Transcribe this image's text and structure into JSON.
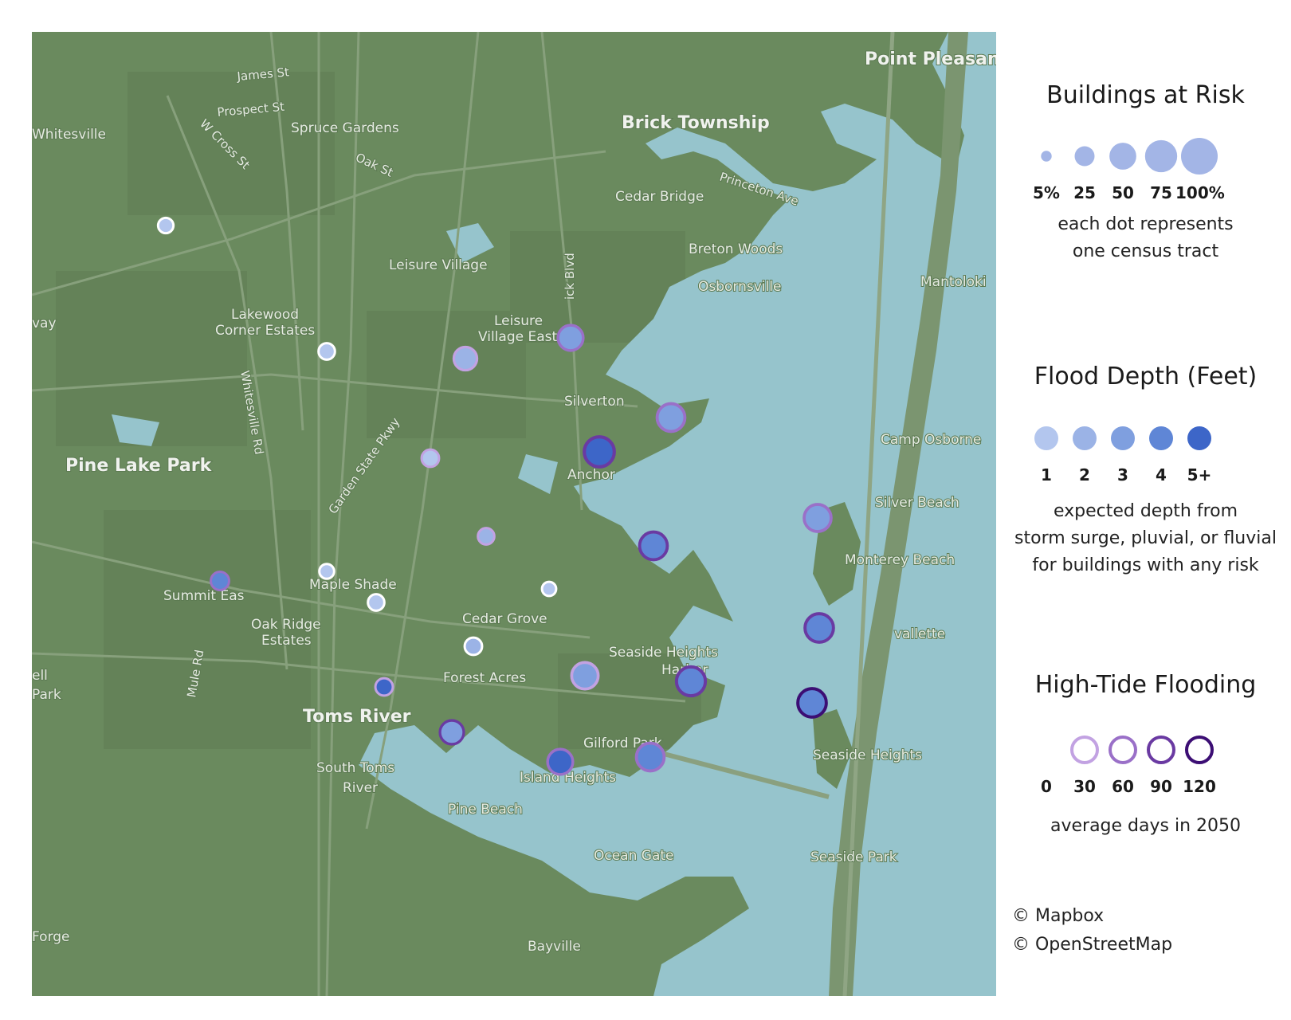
{
  "map": {
    "places": [
      {
        "name": "Point Pleasant",
        "kind": "city"
      },
      {
        "name": "Brick Township",
        "kind": "city"
      },
      {
        "name": "James St",
        "kind": "road"
      },
      {
        "name": "Prospect St",
        "kind": "road"
      },
      {
        "name": "Spruce Gardens",
        "kind": "town"
      },
      {
        "name": "Whitesville",
        "kind": "town"
      },
      {
        "name": "W Cross St",
        "kind": "road"
      },
      {
        "name": "Oak St",
        "kind": "road"
      },
      {
        "name": "Princeton Ave",
        "kind": "road"
      },
      {
        "name": "Cedar Bridge",
        "kind": "town"
      },
      {
        "name": "Breton Woods",
        "kind": "town"
      },
      {
        "name": "Leisure Village",
        "kind": "town"
      },
      {
        "name": "Mantoloki",
        "kind": "town"
      },
      {
        "name": "Osbornsville",
        "kind": "town"
      },
      {
        "name": "Lakewood",
        "kind": "town"
      },
      {
        "name": "Corner Estates",
        "kind": "town"
      },
      {
        "name": "Leisure",
        "kind": "town"
      },
      {
        "name": "Village East",
        "kind": "town"
      },
      {
        "name": "ick Blvd",
        "kind": "road"
      },
      {
        "name": "Silverton",
        "kind": "town"
      },
      {
        "name": "Whitesville Rd",
        "kind": "road"
      },
      {
        "name": "Garden State Pkwy",
        "kind": "road"
      },
      {
        "name": "Camp Osborne",
        "kind": "town"
      },
      {
        "name": "Pine Lake Park",
        "kind": "city"
      },
      {
        "name": "Anchor",
        "kind": "town"
      },
      {
        "name": "Silver Beach",
        "kind": "town"
      },
      {
        "name": "Monterey Beach",
        "kind": "town"
      },
      {
        "name": "Summit Eas",
        "kind": "town"
      },
      {
        "name": "Maple Shade",
        "kind": "town"
      },
      {
        "name": "Oak Ridge",
        "kind": "town"
      },
      {
        "name": "Estates",
        "kind": "town"
      },
      {
        "name": "Cedar Grove",
        "kind": "town"
      },
      {
        "name": "vallette",
        "kind": "town"
      },
      {
        "name": "Seaside Heights",
        "kind": "town"
      },
      {
        "name": "Harbor",
        "kind": "town"
      },
      {
        "name": "Mule Rd",
        "kind": "road"
      },
      {
        "name": "Forest Acres",
        "kind": "town"
      },
      {
        "name": "Toms River",
        "kind": "city"
      },
      {
        "name": "Gilford Park",
        "kind": "town"
      },
      {
        "name": "Seaside Heights",
        "kind": "town"
      },
      {
        "name": "South Toms",
        "kind": "town"
      },
      {
        "name": "River",
        "kind": "town"
      },
      {
        "name": "Island Heights",
        "kind": "town"
      },
      {
        "name": "Pine Beach",
        "kind": "town"
      },
      {
        "name": "Seaside Park",
        "kind": "town"
      },
      {
        "name": "Ocean Gate",
        "kind": "town"
      },
      {
        "name": "Bayville",
        "kind": "town"
      },
      {
        "name": "Forge",
        "kind": "town"
      },
      {
        "name": "ell",
        "kind": "town"
      },
      {
        "name": "Park",
        "kind": "town"
      },
      {
        "name": "vay",
        "kind": "town"
      }
    ],
    "colors": {
      "land": "#6a8a5e",
      "water": "#96c4cc",
      "road": "#87a07c"
    }
  },
  "tracts": [
    {
      "buildings_pct": 8,
      "depth_ft": 1,
      "tide_days": 0
    },
    {
      "buildings_pct": 10,
      "depth_ft": 1,
      "tide_days": 0
    },
    {
      "buildings_pct": 28,
      "depth_ft": 2,
      "tide_days": 30
    },
    {
      "buildings_pct": 35,
      "depth_ft": 3,
      "tide_days": 60
    },
    {
      "buildings_pct": 45,
      "depth_ft": 3,
      "tide_days": 60
    },
    {
      "buildings_pct": 12,
      "depth_ft": 1,
      "tide_days": 30
    },
    {
      "buildings_pct": 55,
      "depth_ft": 5,
      "tide_days": 90
    },
    {
      "buildings_pct": 10,
      "depth_ft": 2,
      "tide_days": 30
    },
    {
      "buildings_pct": 45,
      "depth_ft": 4,
      "tide_days": 90
    },
    {
      "buildings_pct": 42,
      "depth_ft": 3,
      "tide_days": 60
    },
    {
      "buildings_pct": 14,
      "depth_ft": 4,
      "tide_days": 60
    },
    {
      "buildings_pct": 7,
      "depth_ft": 1,
      "tide_days": 0
    },
    {
      "buildings_pct": 10,
      "depth_ft": 1,
      "tide_days": 0
    },
    {
      "buildings_pct": 6,
      "depth_ft": 1,
      "tide_days": 0
    },
    {
      "buildings_pct": 48,
      "depth_ft": 4,
      "tide_days": 90
    },
    {
      "buildings_pct": 12,
      "depth_ft": 2,
      "tide_days": 0
    },
    {
      "buildings_pct": 40,
      "depth_ft": 3,
      "tide_days": 30
    },
    {
      "buildings_pct": 50,
      "depth_ft": 4,
      "tide_days": 90
    },
    {
      "buildings_pct": 12,
      "depth_ft": 5,
      "tide_days": 30
    },
    {
      "buildings_pct": 48,
      "depth_ft": 4,
      "tide_days": 120
    },
    {
      "buildings_pct": 30,
      "depth_ft": 3,
      "tide_days": 90
    },
    {
      "buildings_pct": 35,
      "depth_ft": 5,
      "tide_days": 60
    },
    {
      "buildings_pct": 45,
      "depth_ft": 4,
      "tide_days": 60
    }
  ],
  "legend": {
    "buildings": {
      "title": "Buildings at Risk",
      "items": [
        {
          "label": "5%",
          "value": 5
        },
        {
          "label": "25",
          "value": 25
        },
        {
          "label": "50",
          "value": 50
        },
        {
          "label": "75",
          "value": 75
        },
        {
          "label": "100%",
          "value": 100
        }
      ],
      "note_line1": "each dot represents",
      "note_line2": "one census tract",
      "color": "#a3b5e6"
    },
    "depth": {
      "title": "Flood Depth (Feet)",
      "items": [
        {
          "label": "1",
          "color": "#b3c6ee"
        },
        {
          "label": "2",
          "color": "#9bb3e6"
        },
        {
          "label": "3",
          "color": "#7f9fdf"
        },
        {
          "label": "4",
          "color": "#5f86d6"
        },
        {
          "label": "5+",
          "color": "#3d66c8"
        }
      ],
      "note_line1": "expected depth from",
      "note_line2": "storm surge, pluvial, or fluvial",
      "note_line3": "for buildings with any risk"
    },
    "tide": {
      "title": "High-Tide Flooding",
      "items": [
        {
          "label": "0",
          "color": "#ffffff"
        },
        {
          "label": "30",
          "color": "#c2a2e2"
        },
        {
          "label": "60",
          "color": "#9a70c8"
        },
        {
          "label": "90",
          "color": "#6a3aa2"
        },
        {
          "label": "120",
          "color": "#3c0e74"
        }
      ],
      "note": "average days in 2050"
    },
    "credits": [
      "© Mapbox",
      "© OpenStreetMap"
    ]
  }
}
